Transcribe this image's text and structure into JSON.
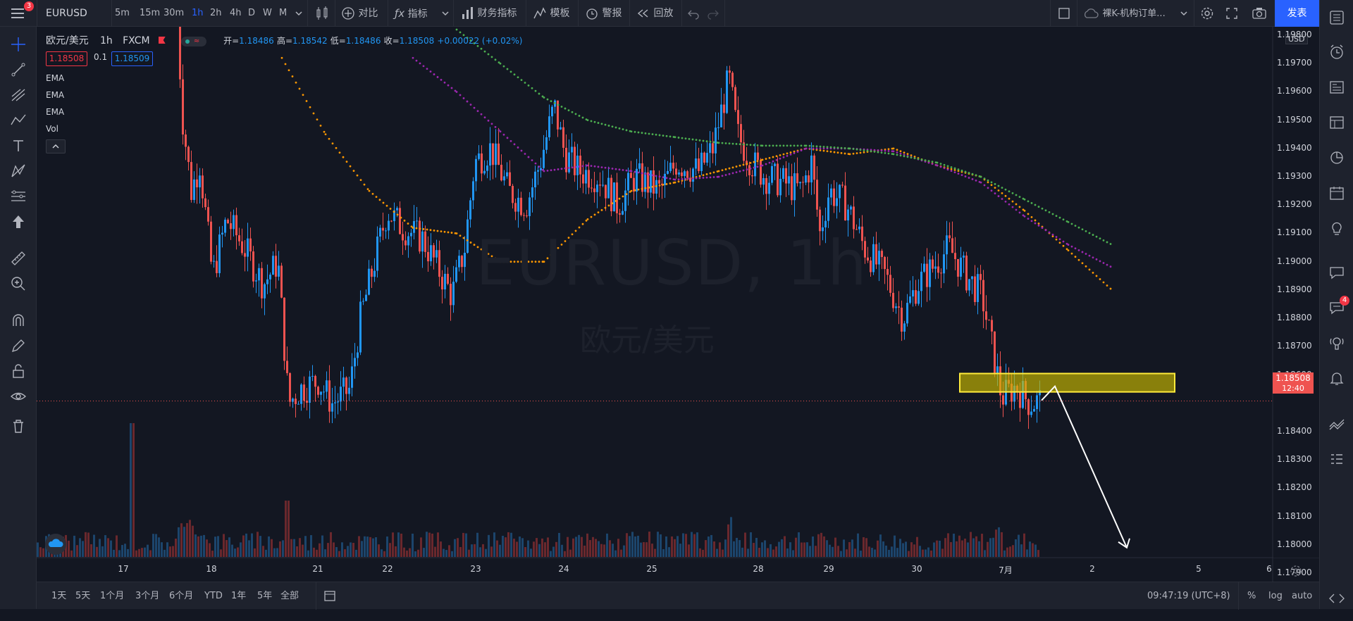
{
  "toolbar": {
    "menu_badge": "3",
    "symbol": "EURUSD",
    "intervals": [
      "5m",
      "15m",
      "30m",
      "1h",
      "2h",
      "4h",
      "D",
      "W",
      "M"
    ],
    "active_interval": "1h",
    "compare_label": "对比",
    "indicators_label": "指标",
    "financials_label": "财务指标",
    "templates_label": "模板",
    "alert_label": "警报",
    "replay_label": "回放",
    "layout_name": "裸K-机构订单...",
    "publish_label": "发表"
  },
  "legend": {
    "pair": "欧元/美元",
    "interval": "1h",
    "exchange": "FXCM",
    "open_label": "开=",
    "open": "1.18486",
    "high_label": "高=",
    "high": "1.18542",
    "low_label": "低=",
    "low": "1.18486",
    "close_label": "收=",
    "close": "1.18508",
    "change": "+0.00022 (+0.02%)",
    "bid": "1.18508",
    "spread": "0.1",
    "ask": "1.18509",
    "indicators": [
      "EMA",
      "EMA",
      "EMA",
      "Vol"
    ]
  },
  "watermark": {
    "line1": "EURUSD, 1h",
    "line2": "欧元/美元"
  },
  "price_axis": {
    "currency": "USD",
    "ticks": [
      "1.19800",
      "1.19700",
      "1.19600",
      "1.19500",
      "1.19400",
      "1.19300",
      "1.19200",
      "1.19100",
      "1.19000",
      "1.18900",
      "1.18800",
      "1.18700",
      "1.18600",
      "1.18400",
      "1.18300",
      "1.18200",
      "1.18100",
      "1.18000",
      "1.17900"
    ],
    "current_price": "1.18508",
    "countdown": "12:40"
  },
  "time_axis": {
    "ticks": [
      "17",
      "18",
      "21",
      "22",
      "23",
      "24",
      "25",
      "28",
      "29",
      "30",
      "7月",
      "2",
      "5",
      "6"
    ]
  },
  "bottom": {
    "ranges": [
      "1天",
      "5天",
      "1个月",
      "3个月",
      "6个月",
      "YTD",
      "1年",
      "5年",
      "全部"
    ],
    "clock": "09:47:19 (UTC+8)",
    "percent": "%",
    "log": "log",
    "auto": "auto"
  },
  "rightbar": {
    "chat_badge": "4"
  },
  "colors": {
    "up": "#2196f3",
    "down": "#ef5350",
    "ema_fast": "#ff9800",
    "ema_mid": "#9c27b0",
    "ema_slow": "#4caf50",
    "zone_fill": "#c9b800",
    "accent": "#2962ff"
  },
  "chart_data": {
    "type": "candlestick",
    "symbol": "EURUSD",
    "interval": "1h",
    "ylim": [
      1.1787,
      1.1983
    ],
    "ema_fast": [
      [
        0.35,
        1.1972
      ],
      [
        0.4,
        1.1945
      ],
      [
        0.45,
        1.1925
      ],
      [
        0.5,
        1.1912
      ],
      [
        0.55,
        1.191
      ],
      [
        0.6,
        1.19
      ],
      [
        0.65,
        1.19
      ],
      [
        0.7,
        1.1915
      ],
      [
        0.75,
        1.1925
      ],
      [
        0.8,
        1.1928
      ],
      [
        0.85,
        1.1932
      ],
      [
        0.9,
        1.1936
      ],
      [
        0.95,
        1.194
      ],
      [
        1.0,
        1.1938
      ],
      [
        1.05,
        1.194
      ],
      [
        1.1,
        1.1934
      ],
      [
        1.15,
        1.193
      ],
      [
        1.2,
        1.1918
      ],
      [
        1.25,
        1.1904
      ],
      [
        1.3,
        1.189
      ]
    ],
    "ema_mid": [
      [
        0.5,
        1.1972
      ],
      [
        0.55,
        1.196
      ],
      [
        0.6,
        1.1946
      ],
      [
        0.65,
        1.1932
      ],
      [
        0.7,
        1.1934
      ],
      [
        0.75,
        1.1932
      ],
      [
        0.8,
        1.1929
      ],
      [
        0.85,
        1.193
      ],
      [
        0.9,
        1.1934
      ],
      [
        0.95,
        1.194
      ],
      [
        1.0,
        1.194
      ],
      [
        1.05,
        1.1939
      ],
      [
        1.1,
        1.1934
      ],
      [
        1.15,
        1.1928
      ],
      [
        1.2,
        1.1916
      ],
      [
        1.25,
        1.1906
      ],
      [
        1.3,
        1.1898
      ]
    ],
    "ema_slow": [
      [
        0.55,
        1.1982
      ],
      [
        0.6,
        1.197
      ],
      [
        0.65,
        1.1958
      ],
      [
        0.7,
        1.195
      ],
      [
        0.75,
        1.1946
      ],
      [
        0.8,
        1.1944
      ],
      [
        0.85,
        1.1942
      ],
      [
        0.9,
        1.1941
      ],
      [
        0.95,
        1.1941
      ],
      [
        1.0,
        1.194
      ],
      [
        1.05,
        1.1938
      ],
      [
        1.1,
        1.1935
      ],
      [
        1.15,
        1.193
      ],
      [
        1.2,
        1.1922
      ],
      [
        1.25,
        1.1914
      ],
      [
        1.3,
        1.1906
      ]
    ],
    "zone": {
      "top": 1.18605,
      "bottom": 1.1854
    },
    "arrow": {
      "from": 1.1856,
      "to": 1.1799
    }
  }
}
